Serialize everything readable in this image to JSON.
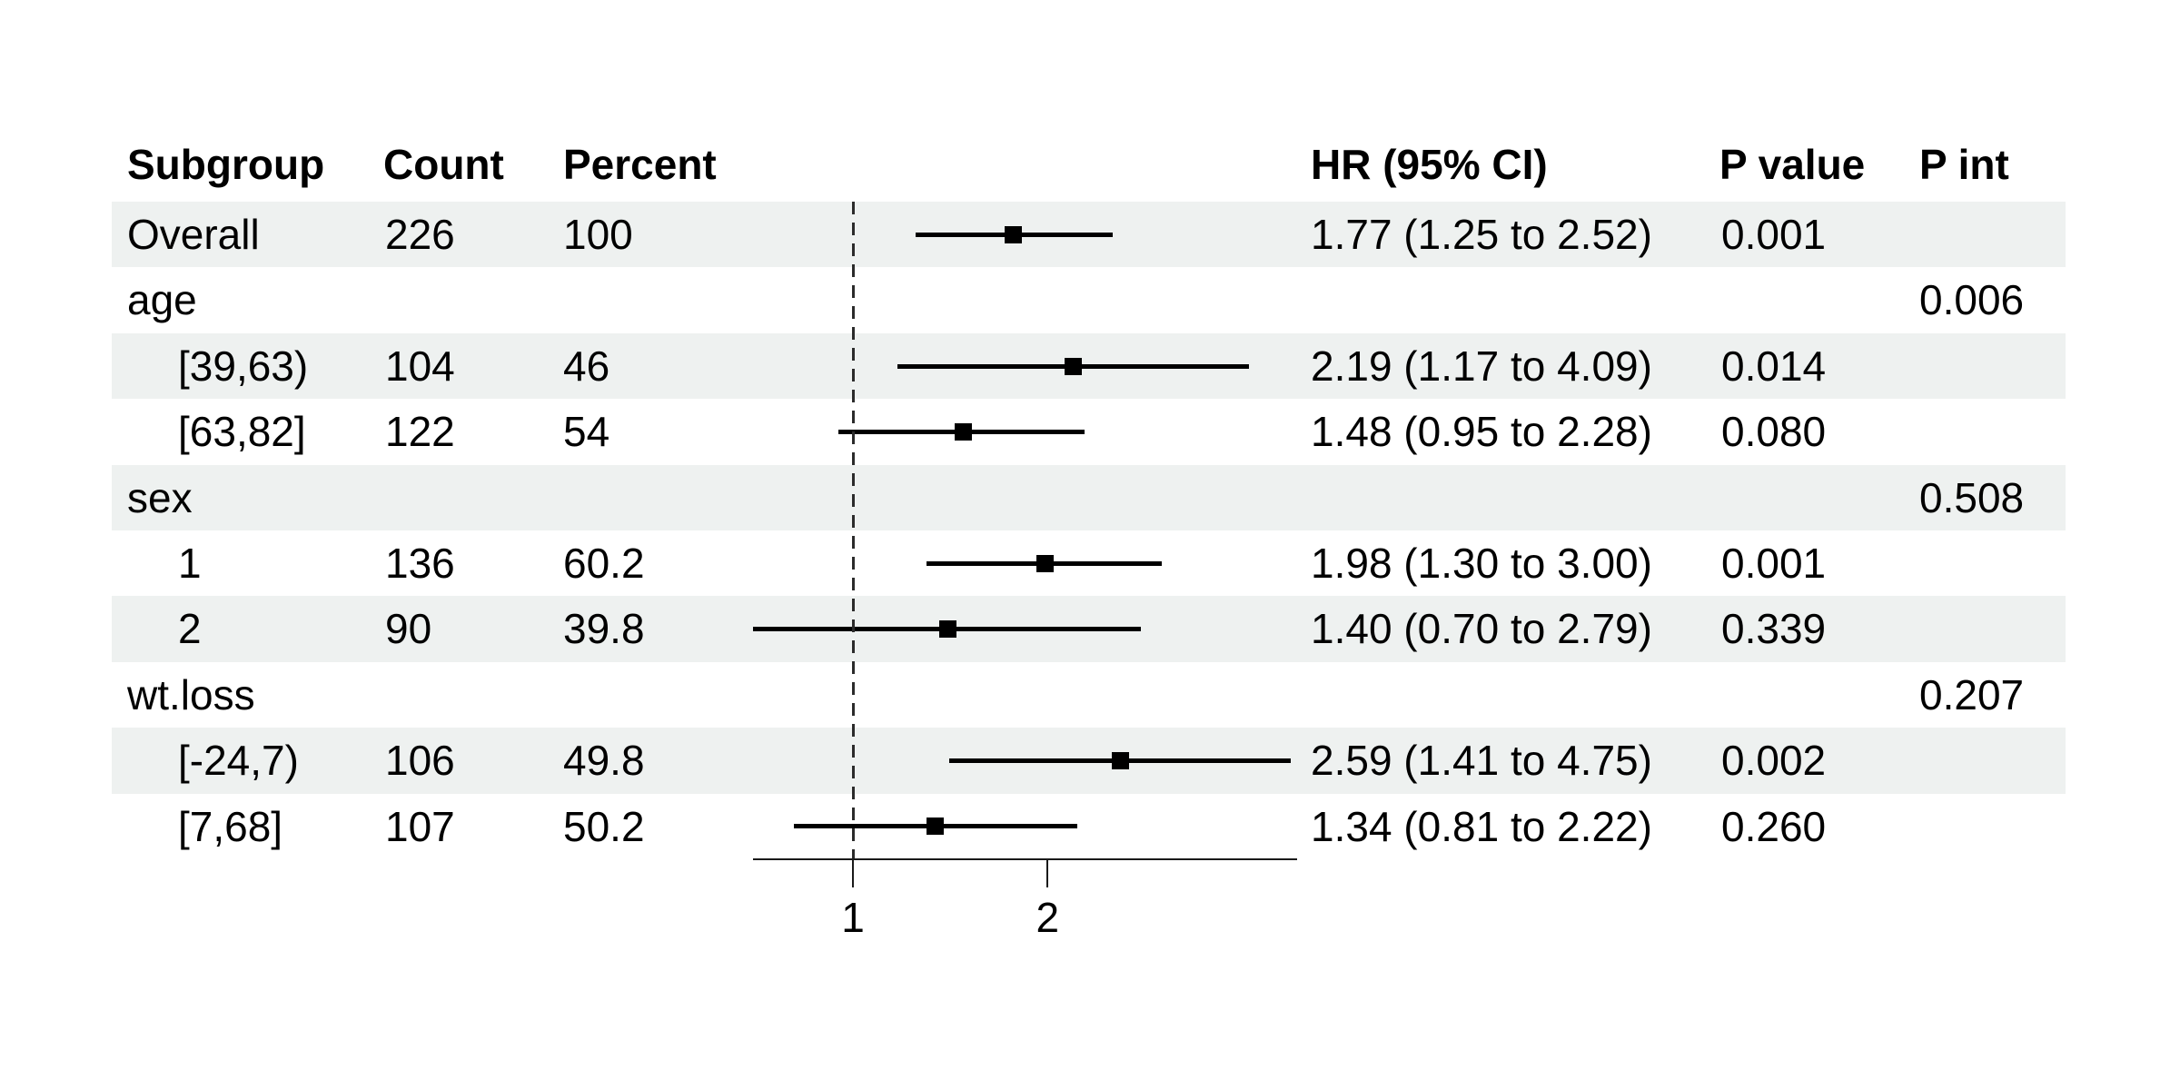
{
  "title": "",
  "columns": {
    "subgroup": "Subgroup",
    "count": "Count",
    "percent": "Percent",
    "hr_ci": "HR (95% CI)",
    "p_value": "P value",
    "p_int": "P int"
  },
  "colors": {
    "background": "#ffffff",
    "stripe": "#eef1f0",
    "text": "#000000",
    "ci_line": "#000000",
    "marker": "#000000",
    "ref_line": "#2b2b2b",
    "axis": "#1a1a1a"
  },
  "chart_data": {
    "type": "forest",
    "x_axis": {
      "scale": "log",
      "ticks": [
        1,
        2
      ],
      "tick_labels": [
        "1",
        "2"
      ],
      "reference_line": 1,
      "range": [
        0.66,
        4.9
      ]
    },
    "rows": [
      {
        "subgroup": "Overall",
        "indent": false,
        "count": "226",
        "percent": "100",
        "hr": 1.77,
        "ci_low": 1.25,
        "ci_high": 2.52,
        "hr_ci_text": "1.77 (1.25 to 2.52)",
        "p_value": "0.001",
        "p_int": "",
        "shaded": true
      },
      {
        "subgroup": "age",
        "indent": false,
        "count": "",
        "percent": "",
        "hr": null,
        "ci_low": null,
        "ci_high": null,
        "hr_ci_text": "",
        "p_value": "",
        "p_int": "0.006",
        "shaded": false
      },
      {
        "subgroup": "[39,63)",
        "indent": true,
        "count": "104",
        "percent": "46",
        "hr": 2.19,
        "ci_low": 1.17,
        "ci_high": 4.09,
        "hr_ci_text": "2.19 (1.17 to 4.09)",
        "p_value": "0.014",
        "p_int": "",
        "shaded": true
      },
      {
        "subgroup": "[63,82]",
        "indent": true,
        "count": "122",
        "percent": "54",
        "hr": 1.48,
        "ci_low": 0.95,
        "ci_high": 2.28,
        "hr_ci_text": "1.48 (0.95 to 2.28)",
        "p_value": "0.080",
        "p_int": "",
        "shaded": false
      },
      {
        "subgroup": "sex",
        "indent": false,
        "count": "",
        "percent": "",
        "hr": null,
        "ci_low": null,
        "ci_high": null,
        "hr_ci_text": "",
        "p_value": "",
        "p_int": "0.508",
        "shaded": true
      },
      {
        "subgroup": "1",
        "indent": true,
        "count": "136",
        "percent": "60.2",
        "hr": 1.98,
        "ci_low": 1.3,
        "ci_high": 3.0,
        "hr_ci_text": "1.98 (1.30 to 3.00)",
        "p_value": "0.001",
        "p_int": "",
        "shaded": false
      },
      {
        "subgroup": "2",
        "indent": true,
        "count": "90",
        "percent": "39.8",
        "hr": 1.4,
        "ci_low": 0.7,
        "ci_high": 2.79,
        "hr_ci_text": "1.40 (0.70 to 2.79)",
        "p_value": "0.339",
        "p_int": "",
        "shaded": true
      },
      {
        "subgroup": "wt.loss",
        "indent": false,
        "count": "",
        "percent": "",
        "hr": null,
        "ci_low": null,
        "ci_high": null,
        "hr_ci_text": "",
        "p_value": "",
        "p_int": "0.207",
        "shaded": false
      },
      {
        "subgroup": "[-24,7)",
        "indent": true,
        "count": "106",
        "percent": "49.8",
        "hr": 2.59,
        "ci_low": 1.41,
        "ci_high": 4.75,
        "hr_ci_text": "2.59 (1.41 to 4.75)",
        "p_value": "0.002",
        "p_int": "",
        "shaded": true
      },
      {
        "subgroup": "[7,68]",
        "indent": true,
        "count": "107",
        "percent": "50.2",
        "hr": 1.34,
        "ci_low": 0.81,
        "ci_high": 2.22,
        "hr_ci_text": "1.34 (0.81 to 2.22)",
        "p_value": "0.260",
        "p_int": "",
        "shaded": false
      }
    ]
  }
}
